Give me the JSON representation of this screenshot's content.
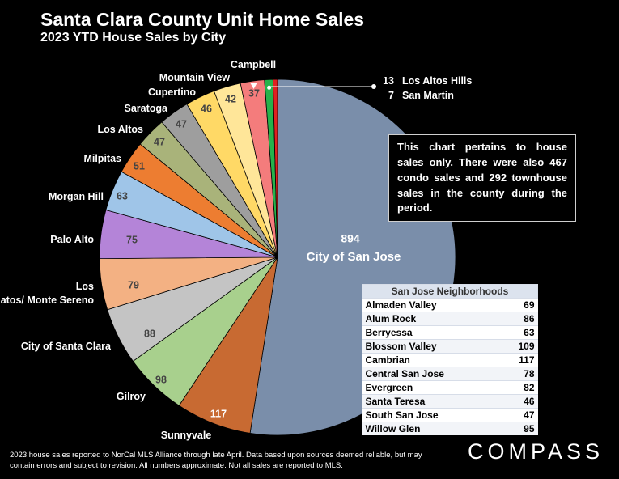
{
  "header": {
    "title": "Santa Clara County Unit Home Sales",
    "subtitle": "2023 YTD House Sales by City"
  },
  "chart_data": {
    "type": "pie",
    "title": "Santa Clara County Unit Home Sales",
    "subtitle": "2023 YTD House Sales by City",
    "slices": [
      {
        "label": "City of San Jose",
        "value": 894,
        "color": "#7a8eaa"
      },
      {
        "label": "Sunnyvale",
        "value": 117,
        "color": "#c86a32"
      },
      {
        "label": "Gilroy",
        "value": 98,
        "color": "#a8d08d"
      },
      {
        "label": "City of Santa Clara",
        "value": 88,
        "color": "#c4c4c4"
      },
      {
        "label": "Los Gatos/ Monte Sereno",
        "value": 79,
        "color": "#f3b183"
      },
      {
        "label": "Palo Alto",
        "value": 75,
        "color": "#b484d8"
      },
      {
        "label": "Morgan Hill",
        "value": 63,
        "color": "#9fc5e8"
      },
      {
        "label": "Milpitas",
        "value": 51,
        "color": "#ed7d31"
      },
      {
        "label": "Los Altos",
        "value": 47,
        "color": "#a9b37a"
      },
      {
        "label": "Saratoga",
        "value": 47,
        "color": "#9e9e9e"
      },
      {
        "label": "Cupertino",
        "value": 46,
        "color": "#ffd966"
      },
      {
        "label": "Mountain View",
        "value": 42,
        "color": "#ffe699"
      },
      {
        "label": "Campbell",
        "value": 37,
        "color": "#f47c7c"
      },
      {
        "label": "Los Altos Hills",
        "value": 13,
        "color": "#26b24b"
      },
      {
        "label": "San Martin",
        "value": 7,
        "color": "#e02020"
      }
    ]
  },
  "note": {
    "text": "This chart pertains to house sales only. There were also 467 condo sales and 292 townhouse sales in the county during the period."
  },
  "neighborhoods": {
    "title": "San Jose Neighborhoods",
    "rows": [
      {
        "name": "Almaden Valley",
        "value": "69"
      },
      {
        "name": "Alum Rock",
        "value": "86"
      },
      {
        "name": "Berryessa",
        "value": "63"
      },
      {
        "name": "Blossom Valley",
        "value": "109"
      },
      {
        "name": "Cambrian",
        "value": "117"
      },
      {
        "name": "Central San Jose",
        "value": "78"
      },
      {
        "name": "Evergreen",
        "value": "82"
      },
      {
        "name": "Santa Teresa",
        "value": "46"
      },
      {
        "name": "South San Jose",
        "value": "47"
      },
      {
        "name": "Willow Glen",
        "value": "95"
      }
    ]
  },
  "footer": {
    "text": "2023 house sales reported to NorCal MLS Alliance through late April. Data based upon sources deemed reliable, but may contain errors and subject to revision. All numbers approximate. Not all sales are reported to MLS."
  },
  "brand": {
    "name": "COMPASS"
  }
}
